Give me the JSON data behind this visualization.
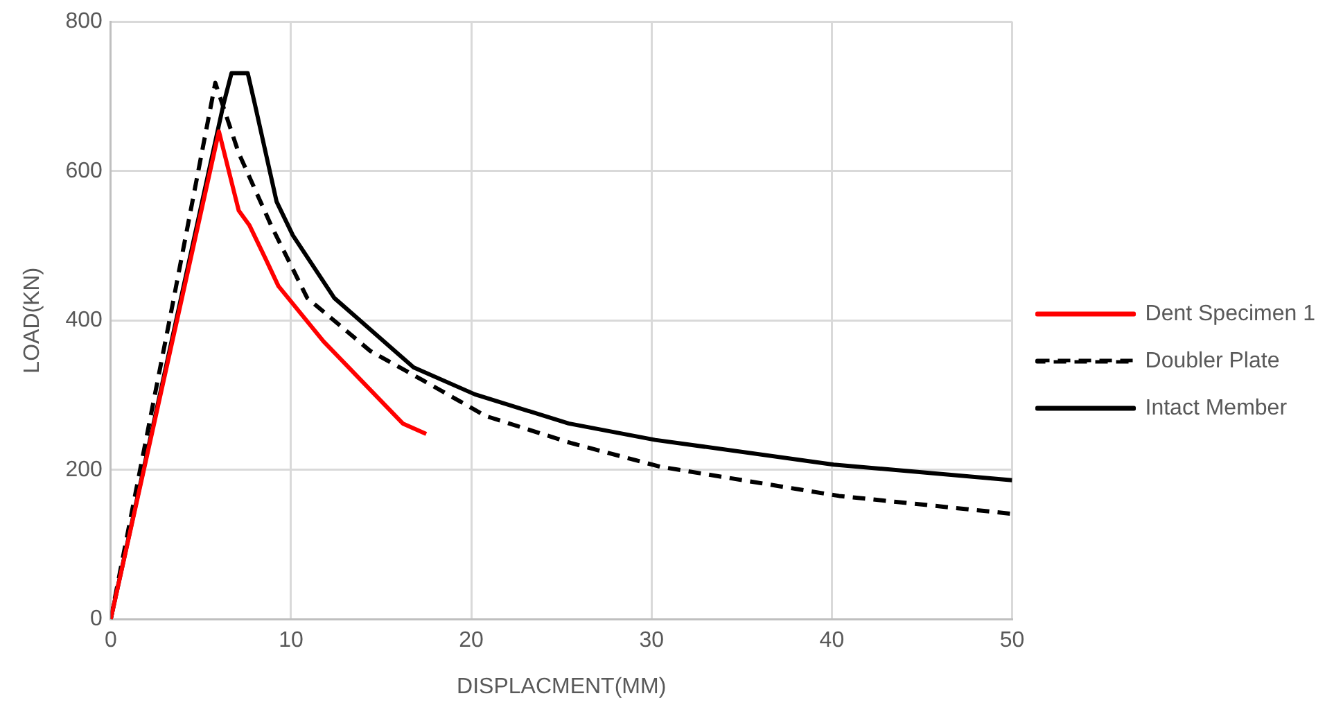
{
  "chart_data": {
    "type": "line",
    "xlabel": "DISPLACMENT(MM)",
    "ylabel": "LOAD(KN)",
    "xlim": [
      0,
      50
    ],
    "xticks": [
      0,
      10,
      20,
      30,
      40,
      50
    ],
    "ylim": [
      0,
      800
    ],
    "yticks": [
      0,
      200,
      400,
      600,
      800
    ],
    "grid": true,
    "legend": "right",
    "marker": "none",
    "series": [
      {
        "name": "Dent Specimen 1",
        "color": "#ff0000",
        "line_style": "solid",
        "x": [
          0,
          6.0,
          7.1,
          7.7,
          8.6,
          9.3,
          11.8,
          16.2,
          17.5
        ],
        "values": [
          0,
          653,
          547,
          527,
          482,
          446,
          372,
          262,
          248
        ]
      },
      {
        "name": "Doubler Plate",
        "color": "#000000",
        "line_style": "dashed",
        "x": [
          0,
          3.3,
          5.8,
          7.1,
          8.9,
          10.9,
          14.4,
          17.3,
          20.8,
          25.5,
          30.5,
          40.4,
          50
        ],
        "values": [
          0,
          405,
          718,
          624,
          527,
          430,
          359,
          320,
          272,
          236,
          204,
          165,
          141
        ]
      },
      {
        "name": "Intact Member",
        "color": "#000000",
        "line_style": "solid",
        "x": [
          0,
          6.25,
          6.7,
          7.6,
          8.0,
          8.6,
          9.2,
          10.1,
          12.4,
          16.8,
          20.2,
          25.4,
          30.2,
          40.1,
          50
        ],
        "values": [
          0,
          689,
          731,
          731,
          689,
          624,
          559,
          514,
          430,
          337,
          301,
          262,
          240,
          207,
          186
        ]
      }
    ]
  }
}
